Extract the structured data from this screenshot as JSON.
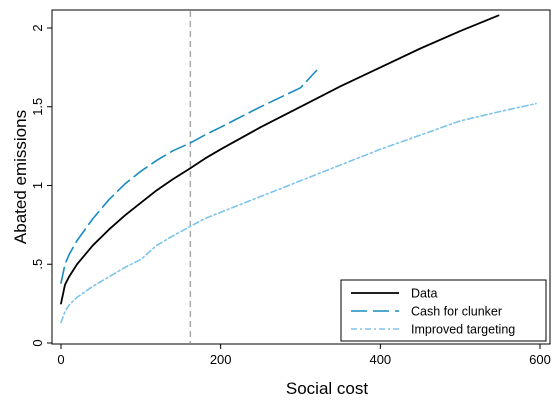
{
  "chart_data": {
    "type": "line",
    "title": "",
    "xlabel": "Social cost",
    "ylabel": "Abated emissions",
    "xlim": [
      0,
      600
    ],
    "ylim": [
      0,
      2.2
    ],
    "xticks": [
      0,
      200,
      400,
      600
    ],
    "xtick_labels": [
      "0",
      "200",
      "400",
      "600"
    ],
    "yticks": [
      0,
      0.5,
      1,
      1.5,
      2
    ],
    "ytick_labels": [
      "0",
      ".5",
      "1",
      "1.5",
      "2"
    ],
    "grid": false,
    "reference_line": {
      "axis": "x",
      "value": 162,
      "color": "#aaaaaa",
      "dash": "dashed"
    },
    "legend": {
      "placement": "bottom-right"
    },
    "series": [
      {
        "name": "Data",
        "color": "#000000",
        "dash": "solid",
        "x": [
          0,
          5,
          10,
          20,
          40,
          60,
          80,
          100,
          120,
          140,
          162,
          180,
          200,
          250,
          300,
          350,
          400,
          450,
          500,
          548
        ],
        "y": [
          0.25,
          0.37,
          0.42,
          0.5,
          0.62,
          0.72,
          0.81,
          0.89,
          0.97,
          1.04,
          1.11,
          1.17,
          1.23,
          1.37,
          1.5,
          1.63,
          1.75,
          1.87,
          1.98,
          2.08
        ]
      },
      {
        "name": "Cash for clunker",
        "color": "#1a8cc0",
        "dash": "longdash",
        "x": [
          0,
          5,
          10,
          20,
          40,
          60,
          80,
          100,
          120,
          140,
          162,
          180,
          200,
          250,
          300,
          320
        ],
        "y": [
          0.38,
          0.5,
          0.56,
          0.65,
          0.79,
          0.91,
          1.01,
          1.09,
          1.16,
          1.22,
          1.27,
          1.32,
          1.37,
          1.5,
          1.62,
          1.73
        ]
      },
      {
        "name": "Improved targeting",
        "color": "#7ec4ea",
        "dash": "dashdot",
        "x": [
          0,
          5,
          10,
          20,
          40,
          60,
          80,
          100,
          120,
          140,
          162,
          180,
          200,
          250,
          300,
          350,
          400,
          450,
          500,
          550,
          595
        ],
        "y": [
          0.13,
          0.2,
          0.24,
          0.29,
          0.36,
          0.42,
          0.48,
          0.53,
          0.62,
          0.68,
          0.74,
          0.79,
          0.83,
          0.93,
          1.03,
          1.13,
          1.23,
          1.32,
          1.41,
          1.47,
          1.52
        ]
      }
    ]
  }
}
